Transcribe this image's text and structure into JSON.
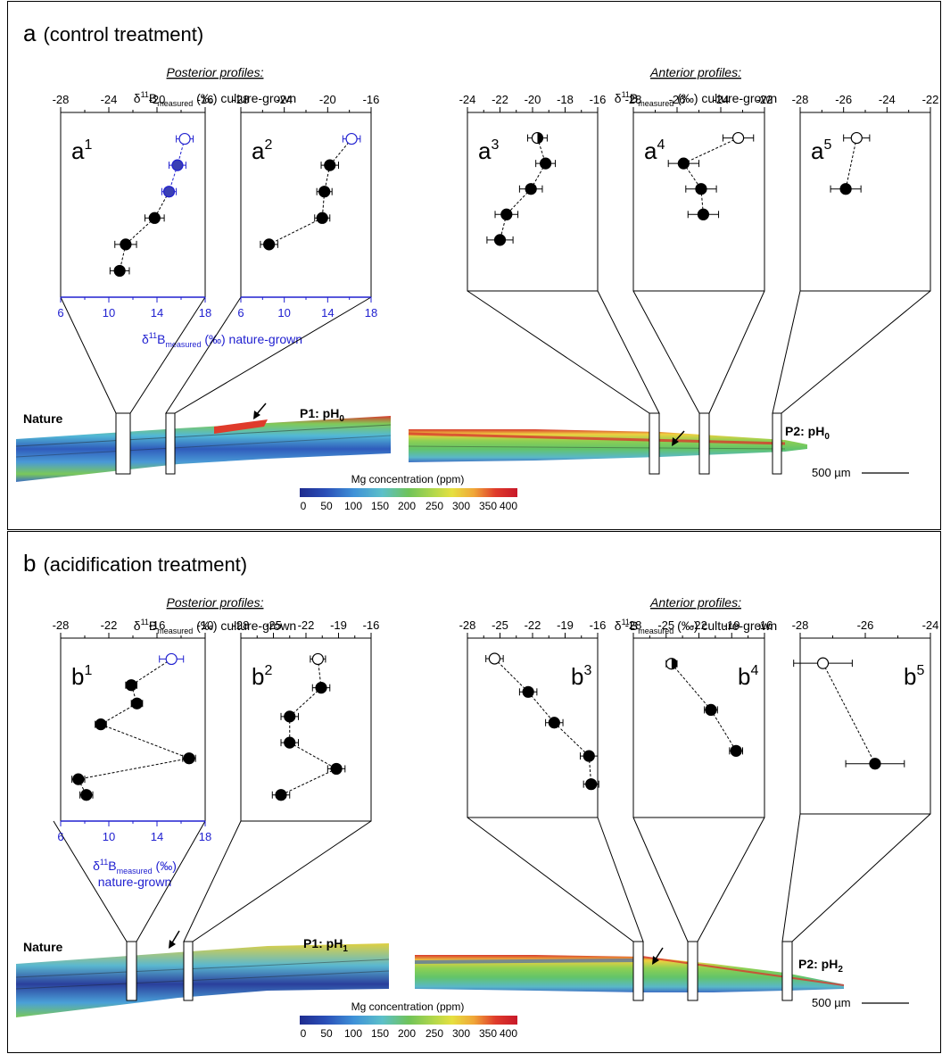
{
  "colors": {
    "blue": "#2020d0",
    "black": "#000000",
    "mg_scale": [
      "#1f2c8f",
      "#2a4fb8",
      "#2f76d0",
      "#49a2e0",
      "#5fc2c7",
      "#6fc35a",
      "#a7d24a",
      "#e6e040",
      "#f3b53a",
      "#ee7a2e",
      "#df3b2b",
      "#c8182a"
    ]
  },
  "panels": [
    {
      "heading_letter": "a",
      "heading_text": "(control treatment)",
      "posterior_title": "Posterior profiles:",
      "anterior_title": "Anterior profiles:",
      "axis_title_main": "δ",
      "axis_title_sup": "11",
      "axis_title_b": "B",
      "axis_title_sub": "measured",
      "axis_title_tail": " (‰) culture-grown",
      "blue_axis_title_main": "δ",
      "blue_axis_title_sup": "11",
      "blue_axis_title_b": "B",
      "blue_axis_title_sub": "measured",
      "blue_axis_title_tail": " (‰) nature-grown",
      "blue_axis_title_line2": "",
      "nature_label": "Nature",
      "p1_label": "P1: pH",
      "p1_sub": "0",
      "p2_label": "P2: pH",
      "p2_sub": "0",
      "scalebar_label": "500 µm",
      "colorbar_title": "Mg concentration (ppm)",
      "colorbar_ticks": [
        "0",
        "50",
        "100",
        "150",
        "200",
        "250",
        "300",
        "350",
        "400"
      ]
    },
    {
      "heading_letter": "b",
      "heading_text": "(acidification treatment)",
      "posterior_title": "Posterior profiles:",
      "anterior_title": "Anterior profiles:",
      "axis_title_main": "δ",
      "axis_title_sup": "11",
      "axis_title_b": "B",
      "axis_title_sub": "measured",
      "axis_title_tail": " (‰) culture-grown",
      "blue_axis_title_main": "δ",
      "blue_axis_title_sup": "11",
      "blue_axis_title_b": "B",
      "blue_axis_title_sub": "measured",
      "blue_axis_title_tail": " (‰)",
      "blue_axis_title_line2": "nature-grown",
      "nature_label": "Nature",
      "p1_label": "P1: pH",
      "p1_sub": "1",
      "p2_label": "P2: pH",
      "p2_sub": "2",
      "scalebar_label": "500 µm",
      "colorbar_title": "Mg concentration (ppm)",
      "colorbar_ticks": [
        "0",
        "50",
        "100",
        "150",
        "200",
        "250",
        "300",
        "350",
        "400"
      ]
    }
  ],
  "chart_data": [
    {
      "type": "scatter",
      "panel": "a",
      "label": "a",
      "sup": "1",
      "xlim": [
        -28,
        -16
      ],
      "top_ticks": [
        "-28",
        "-24",
        "-20",
        "-16"
      ],
      "bottom_axis": {
        "xlim": [
          6,
          18
        ],
        "ticks": [
          "6",
          "10",
          "14",
          "18"
        ]
      },
      "ylim": [
        0,
        7
      ],
      "points": [
        {
          "x": 16.3,
          "y": 1,
          "fill": "open",
          "axis": "bottom",
          "color": "blue",
          "err": 0.7
        },
        {
          "x": 15.7,
          "y": 2,
          "fill": "full",
          "axis": "bottom",
          "color": "blue",
          "err": 0.7
        },
        {
          "x": 15.0,
          "y": 3,
          "fill": "full",
          "axis": "bottom",
          "color": "blue",
          "err": 0.6
        },
        {
          "x": -20.2,
          "y": 4,
          "fill": "full",
          "axis": "top",
          "color": "black",
          "err": 0.8
        },
        {
          "x": -22.6,
          "y": 5,
          "fill": "full",
          "axis": "top",
          "color": "black",
          "err": 0.9
        },
        {
          "x": -23.1,
          "y": 6,
          "fill": "full",
          "axis": "top",
          "color": "black",
          "err": 0.8
        }
      ]
    },
    {
      "type": "scatter",
      "panel": "a",
      "label": "a",
      "sup": "2",
      "xlim": [
        -28,
        -16
      ],
      "top_ticks": [
        "-28",
        "-24",
        "-20",
        "-16"
      ],
      "bottom_axis": {
        "xlim": [
          6,
          18
        ],
        "ticks": [
          "6",
          "10",
          "14",
          "18"
        ]
      },
      "ylim": [
        0,
        7
      ],
      "points": [
        {
          "x": 16.2,
          "y": 1,
          "fill": "open",
          "axis": "bottom",
          "color": "blue",
          "err": 0.8
        },
        {
          "x": -19.8,
          "y": 2,
          "fill": "full",
          "axis": "top",
          "color": "black",
          "err": 0.8
        },
        {
          "x": -20.3,
          "y": 3,
          "fill": "full",
          "axis": "top",
          "color": "black",
          "err": 0.7
        },
        {
          "x": -20.5,
          "y": 4,
          "fill": "full",
          "axis": "top",
          "color": "black",
          "err": 0.7
        },
        {
          "x": -25.4,
          "y": 5,
          "fill": "full",
          "axis": "top",
          "color": "black",
          "err": 0.8
        }
      ]
    },
    {
      "type": "scatter",
      "panel": "a",
      "label": "a",
      "sup": "3",
      "xlim": [
        -24,
        -16
      ],
      "top_ticks": [
        "-24",
        "-22",
        "-20",
        "-18",
        "-16"
      ],
      "ylim": [
        0,
        7
      ],
      "points": [
        {
          "x": -19.7,
          "y": 1,
          "fill": "half",
          "axis": "top",
          "color": "black",
          "err": 0.6
        },
        {
          "x": -19.2,
          "y": 2,
          "fill": "full",
          "axis": "top",
          "color": "black",
          "err": 0.6
        },
        {
          "x": -20.1,
          "y": 3,
          "fill": "full",
          "axis": "top",
          "color": "black",
          "err": 0.7
        },
        {
          "x": -21.6,
          "y": 4,
          "fill": "full",
          "axis": "top",
          "color": "black",
          "err": 0.7
        },
        {
          "x": -22.0,
          "y": 5,
          "fill": "full",
          "axis": "top",
          "color": "black",
          "err": 0.8
        }
      ]
    },
    {
      "type": "scatter",
      "panel": "a",
      "label": "a",
      "sup": "4",
      "xlim": [
        -28,
        -22
      ],
      "top_ticks": [
        "-28",
        "-26",
        "-24",
        "-22"
      ],
      "ylim": [
        0,
        7
      ],
      "points": [
        {
          "x": -23.2,
          "y": 1,
          "fill": "open",
          "axis": "top",
          "color": "black",
          "err": 0.7
        },
        {
          "x": -25.7,
          "y": 2,
          "fill": "full",
          "axis": "top",
          "color": "black",
          "err": 0.7
        },
        {
          "x": -24.9,
          "y": 3,
          "fill": "full",
          "axis": "top",
          "color": "black",
          "err": 0.7
        },
        {
          "x": -24.8,
          "y": 4,
          "fill": "full",
          "axis": "top",
          "color": "black",
          "err": 0.7
        }
      ]
    },
    {
      "type": "scatter",
      "panel": "a",
      "label": "a",
      "sup": "5",
      "xlim": [
        -28,
        -22
      ],
      "top_ticks": [
        "-28",
        "-26",
        "-24",
        "-22"
      ],
      "ylim": [
        0,
        7
      ],
      "points": [
        {
          "x": -25.4,
          "y": 1,
          "fill": "open",
          "axis": "top",
          "color": "black",
          "err": 0.6
        },
        {
          "x": -25.9,
          "y": 3,
          "fill": "full",
          "axis": "top",
          "color": "black",
          "err": 0.7
        }
      ]
    },
    {
      "type": "scatter",
      "panel": "b",
      "label": "b",
      "sup": "1",
      "xlim": [
        -28,
        -10
      ],
      "top_ticks": [
        "-28",
        "-22",
        "-16",
        "-10"
      ],
      "bottom_axis": {
        "xlim": [
          6,
          18
        ],
        "ticks": [
          "6",
          "10",
          "14",
          "18"
        ]
      },
      "ylim": [
        0,
        7
      ],
      "points": [
        {
          "x": 15.2,
          "y": 0.8,
          "fill": "open",
          "axis": "bottom",
          "color": "blue",
          "err": 1.0
        },
        {
          "x": -19.2,
          "y": 1.8,
          "fill": "full",
          "axis": "top",
          "color": "black",
          "err": 0.7
        },
        {
          "x": -18.5,
          "y": 2.5,
          "fill": "full",
          "axis": "top",
          "color": "black",
          "err": 0.7
        },
        {
          "x": -23.0,
          "y": 3.3,
          "fill": "full",
          "axis": "top",
          "color": "black",
          "err": 0.7
        },
        {
          "x": -12.0,
          "y": 4.6,
          "fill": "full",
          "axis": "top",
          "color": "black",
          "err": 0.8
        },
        {
          "x": -25.8,
          "y": 5.4,
          "fill": "full",
          "axis": "top",
          "color": "black",
          "err": 0.8
        },
        {
          "x": -24.8,
          "y": 6.0,
          "fill": "full",
          "axis": "top",
          "color": "black",
          "err": 0.8
        }
      ]
    },
    {
      "type": "scatter",
      "panel": "b",
      "label": "b",
      "sup": "2",
      "xlim": [
        -28,
        -16
      ],
      "top_ticks": [
        "-28",
        "-25",
        "-22",
        "-19",
        "-16"
      ],
      "ylim": [
        0,
        7
      ],
      "points": [
        {
          "x": -20.9,
          "y": 0.8,
          "fill": "open",
          "axis": "top",
          "color": "black",
          "err": 0.7
        },
        {
          "x": -20.6,
          "y": 1.9,
          "fill": "full",
          "axis": "top",
          "color": "black",
          "err": 0.8
        },
        {
          "x": -23.5,
          "y": 3.0,
          "fill": "full",
          "axis": "top",
          "color": "black",
          "err": 0.8
        },
        {
          "x": -23.5,
          "y": 4.0,
          "fill": "full",
          "axis": "top",
          "color": "black",
          "err": 0.8
        },
        {
          "x": -19.2,
          "y": 5.0,
          "fill": "full",
          "axis": "top",
          "color": "black",
          "err": 0.8
        },
        {
          "x": -24.3,
          "y": 6.0,
          "fill": "full",
          "axis": "top",
          "color": "black",
          "err": 0.8
        }
      ]
    },
    {
      "type": "scatter",
      "panel": "b",
      "label": "b",
      "sup": "3",
      "xlim": [
        -28,
        -16
      ],
      "top_ticks": [
        "-28",
        "-25",
        "-22",
        "-19",
        "-16"
      ],
      "ylim": [
        0,
        7
      ],
      "points": [
        {
          "x": -25.5,
          "y": 0.8,
          "fill": "open",
          "axis": "top",
          "color": "black",
          "err": 0.8
        },
        {
          "x": -22.4,
          "y": 2.1,
          "fill": "full",
          "axis": "top",
          "color": "black",
          "err": 0.8
        },
        {
          "x": -20.0,
          "y": 3.3,
          "fill": "full",
          "axis": "top",
          "color": "black",
          "err": 0.8
        },
        {
          "x": -16.8,
          "y": 4.6,
          "fill": "full",
          "axis": "top",
          "color": "black",
          "err": 0.8
        },
        {
          "x": -16.6,
          "y": 5.7,
          "fill": "full",
          "axis": "top",
          "color": "black",
          "err": 0.7
        }
      ]
    },
    {
      "type": "scatter",
      "panel": "b",
      "label": "b",
      "sup": "4",
      "xlim": [
        -28,
        -16
      ],
      "top_ticks": [
        "-28",
        "-25",
        "-22",
        "-19",
        "-16"
      ],
      "ylim": [
        0,
        7
      ],
      "points": [
        {
          "x": -24.5,
          "y": 1.0,
          "fill": "half",
          "axis": "top",
          "color": "black",
          "err": 0.5
        },
        {
          "x": -20.9,
          "y": 2.8,
          "fill": "full",
          "axis": "top",
          "color": "black",
          "err": 0.6
        },
        {
          "x": -18.6,
          "y": 4.4,
          "fill": "full",
          "axis": "top",
          "color": "black",
          "err": 0.6
        }
      ]
    },
    {
      "type": "scatter",
      "panel": "b",
      "label": "b",
      "sup": "5",
      "xlim": [
        -28,
        -24
      ],
      "top_ticks": [
        "-28",
        "-26",
        "-24"
      ],
      "ylim": [
        0,
        7
      ],
      "points": [
        {
          "x": -27.3,
          "y": 1.0,
          "fill": "open",
          "axis": "top",
          "color": "black",
          "err": 0.9
        },
        {
          "x": -25.7,
          "y": 5.0,
          "fill": "full",
          "axis": "top",
          "color": "black",
          "err": 0.9
        }
      ]
    }
  ]
}
